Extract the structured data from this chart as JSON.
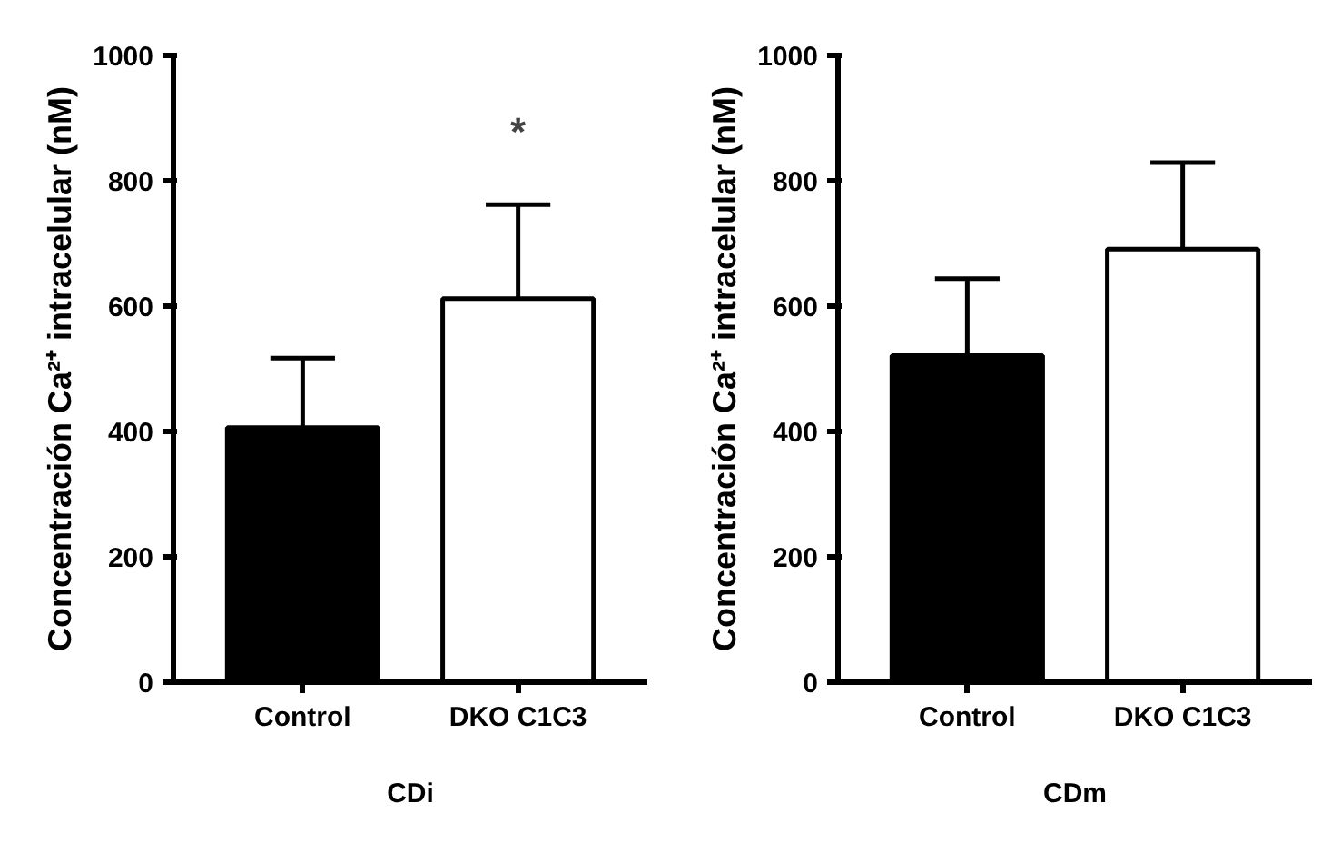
{
  "chart_data": [
    {
      "type": "bar",
      "categories": [
        "Control",
        "DKO C1C3"
      ],
      "values": [
        406,
        612
      ],
      "colors": [
        "#000000",
        "#ffffff"
      ],
      "errors": [
        [
          406,
          517
        ],
        [
          612,
          762
        ]
      ],
      "ylim": [
        0,
        1000
      ],
      "yticks": [
        0,
        200,
        400,
        600,
        800,
        1000
      ],
      "ylabel": "Concentración Ca²⁺ intracelular (nM)",
      "xlabel": "CDi",
      "annotations": [
        "*"
      ]
    },
    {
      "type": "bar",
      "categories": [
        "Control",
        "DKO C1C3"
      ],
      "values": [
        521,
        691
      ],
      "colors": [
        "#000000",
        "#ffffff"
      ],
      "errors": [
        [
          521,
          644
        ],
        [
          691,
          829
        ]
      ],
      "ylim": [
        0,
        1000
      ],
      "yticks": [
        0,
        200,
        400,
        600,
        800,
        1000
      ],
      "ylabel": "Concentración Ca²⁺ intracelular (nM)",
      "xlabel": "CDm"
    }
  ]
}
